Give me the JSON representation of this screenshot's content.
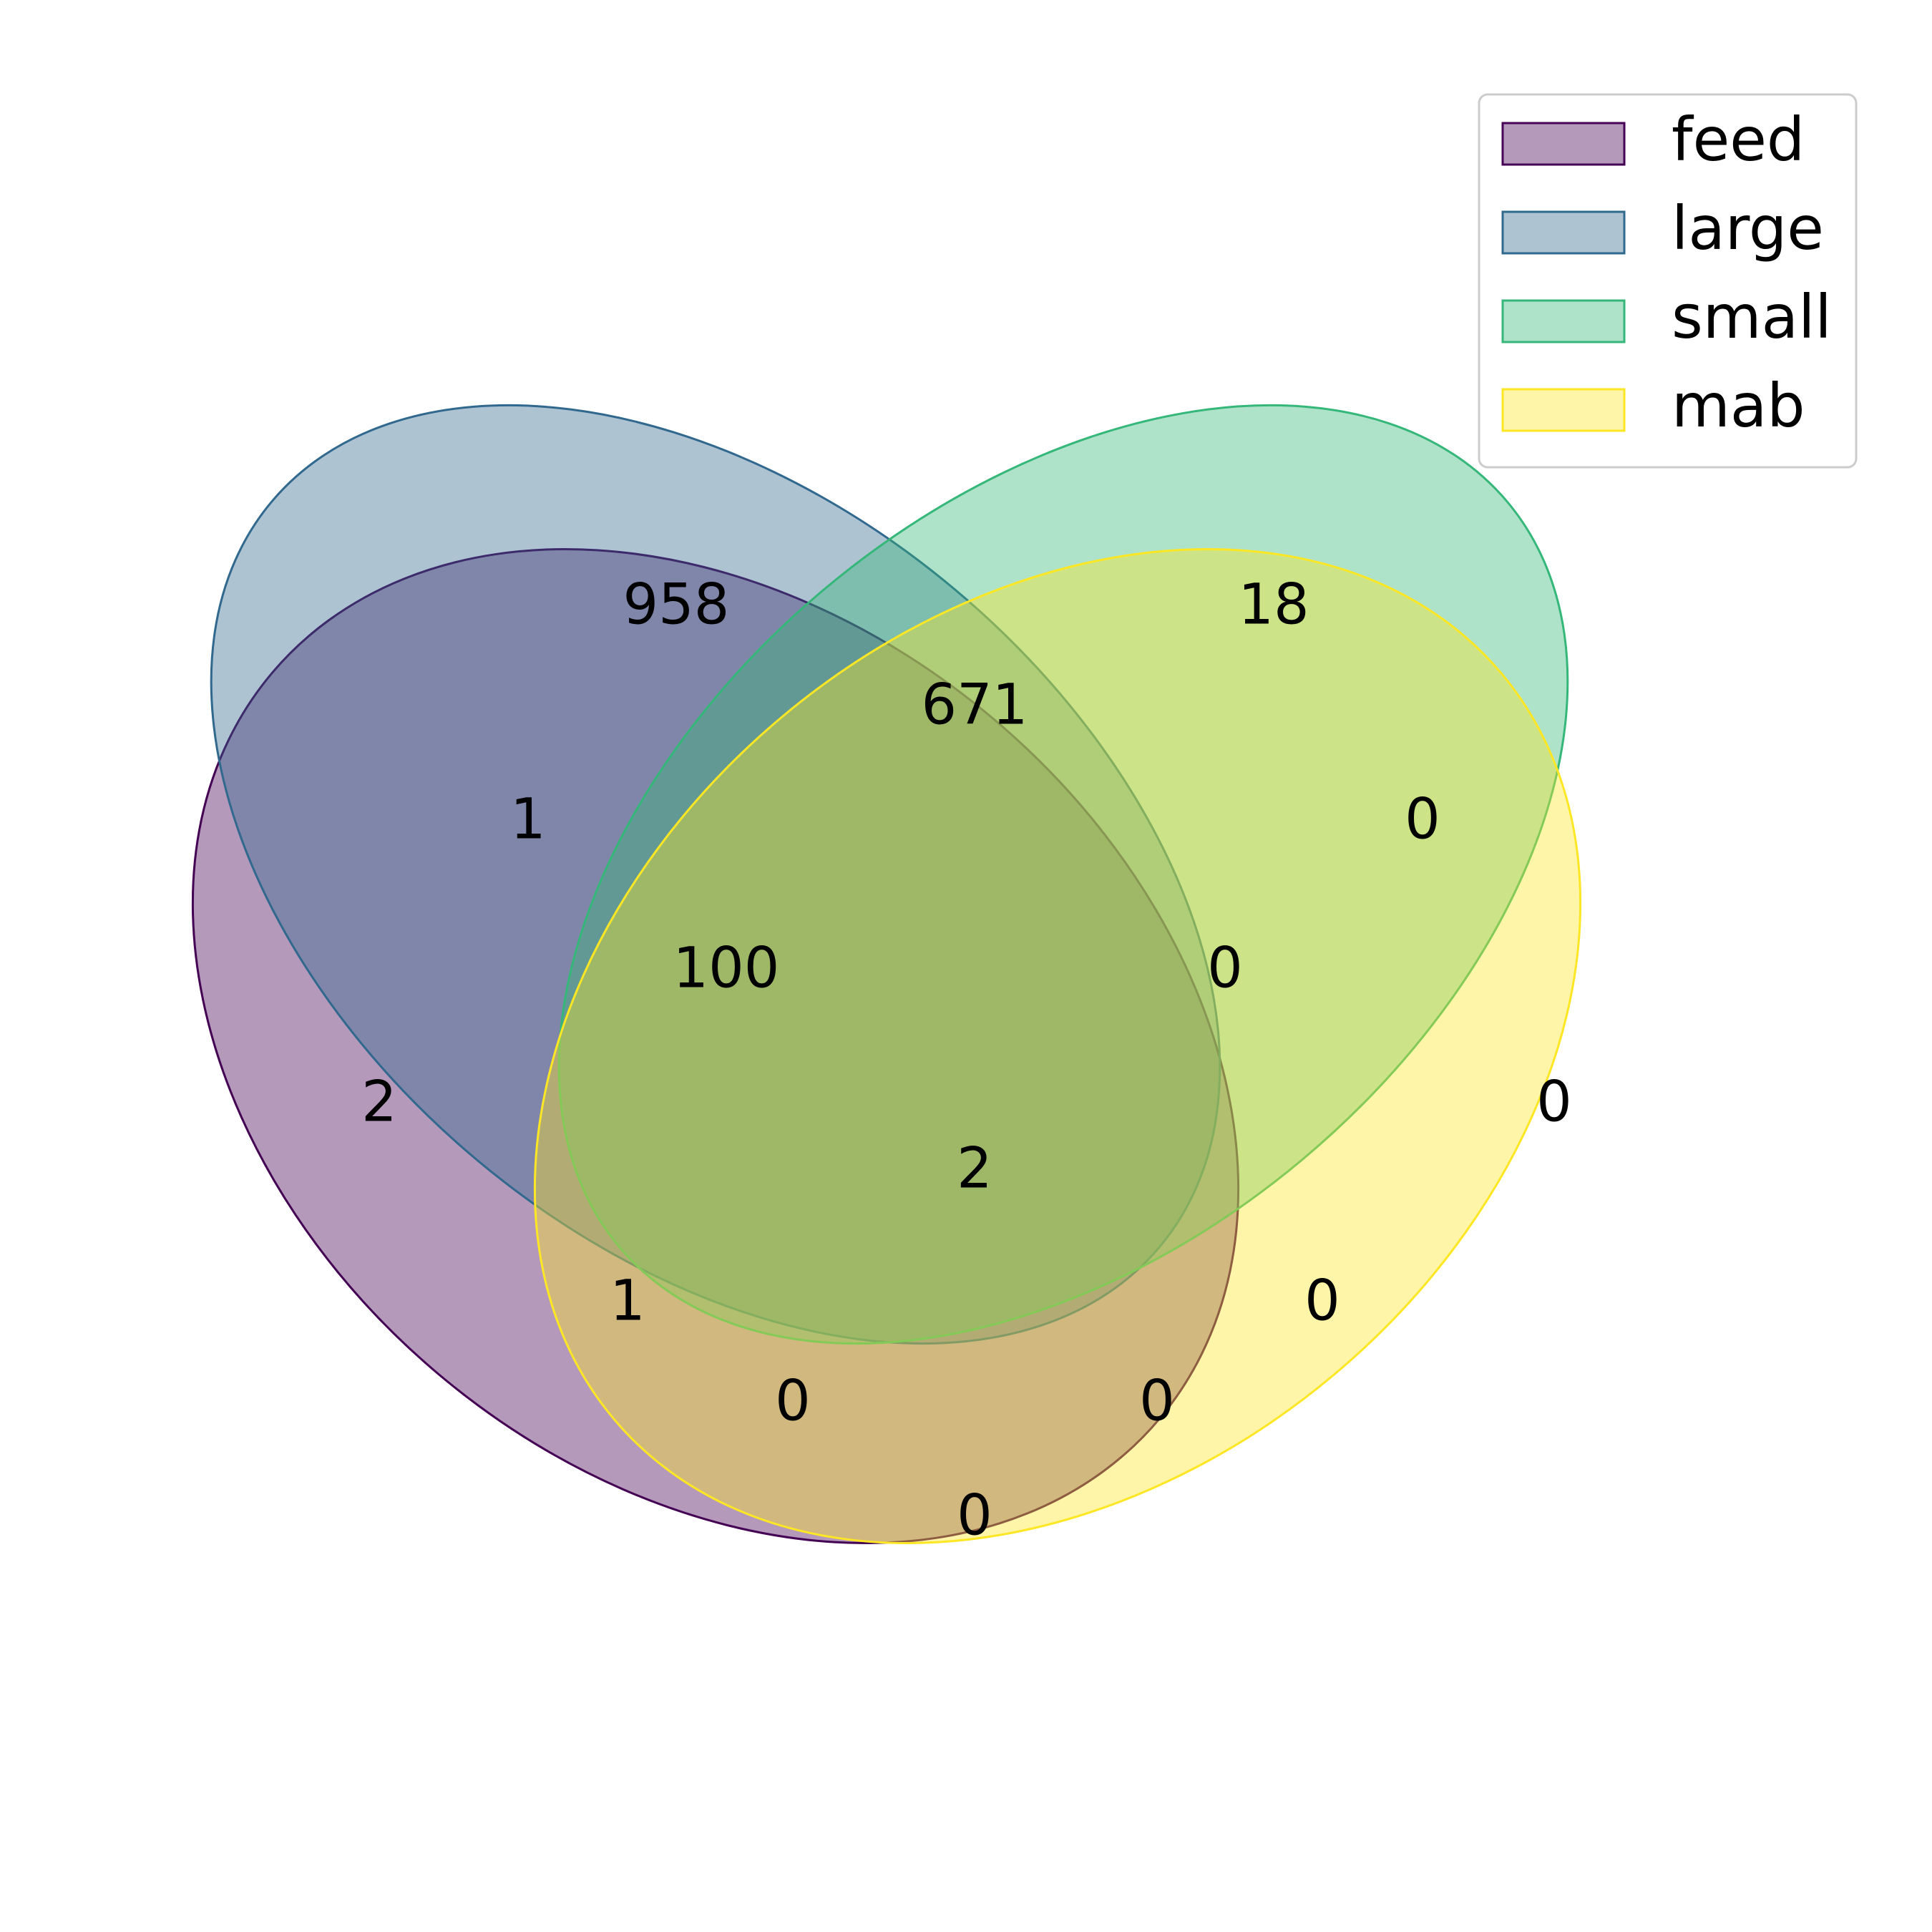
{
  "sets": [
    {
      "key": "feed",
      "name": "feed",
      "fill": "#440154",
      "edge": "#440154"
    },
    {
      "key": "large",
      "name": "large",
      "fill": "#31688e",
      "edge": "#31688e"
    },
    {
      "key": "small",
      "name": "small",
      "fill": "#35b779",
      "edge": "#35b779"
    },
    {
      "key": "mab",
      "name": "mab",
      "fill": "#fde725",
      "edge": "#fde725"
    }
  ],
  "fill_opacity": 0.4,
  "regions": {
    "large_only": "958",
    "small_only": "18",
    "large_small": "671",
    "feed_large": "1",
    "small_mab": "0",
    "feed_large_small": "100",
    "large_small_mab": "0",
    "feed_only": "2",
    "mab_only": "0",
    "all_four": "2",
    "feed_small": "1",
    "large_mab": "0",
    "feed_small_mab": "0",
    "feed_large_mab": "0",
    "feed_mab": "0"
  }
}
